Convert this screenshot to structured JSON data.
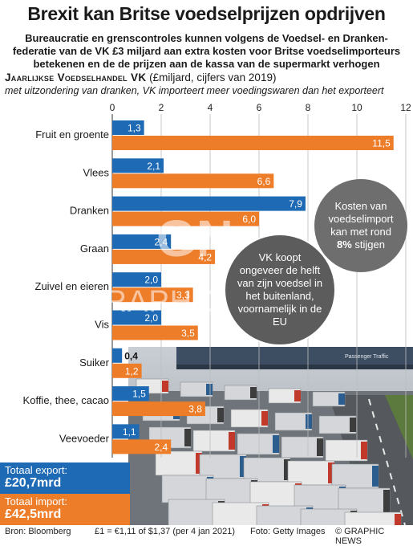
{
  "title": "Brexit kan Britse voedselprijzen opdrijven",
  "subtitle": "Bureaucratie en grenscontroles kunnen volgens de Voedsel- en Dranken-federatie van de VK £3 miljard aan extra kosten voor Britse voedselimporteurs betekenen en de de prijzen aan de kassa van de supermarkt verhogen",
  "chart_head": {
    "bold": "Jaarlijkse Voedselhandel VK",
    "rest": " (£miljard, cijfers van 2019)"
  },
  "chart_note": "met uitzondering van dranken, VK importeert meer voedingswaren dan het exporteert",
  "chart_data": {
    "type": "bar",
    "orientation": "horizontal",
    "categories": [
      "Fruit en groente",
      "Vlees",
      "Dranken",
      "Graan",
      "Zuivel en eieren",
      "Vis",
      "Suiker",
      "Koffie, thee, cacao",
      "Veevoeder"
    ],
    "series": [
      {
        "key": "export",
        "values": [
          1.3,
          2.1,
          7.9,
          2.4,
          2.0,
          2.0,
          0.4,
          1.5,
          1.1
        ],
        "labels": [
          "1,3",
          "2,1",
          "7,9",
          "2,4",
          "2,0",
          "2,0",
          "0,4",
          "1,5",
          "1,1"
        ],
        "color": "#1e6ab5"
      },
      {
        "key": "import",
        "values": [
          11.5,
          6.6,
          6.0,
          4.2,
          3.3,
          3.5,
          1.2,
          3.8,
          2.4
        ],
        "labels": [
          "11,5",
          "6,6",
          "6,0",
          "4,2",
          "3,3",
          "3,5",
          "1,2",
          "3,8",
          "2,4"
        ],
        "color": "#ee7d2a"
      }
    ],
    "xlim": [
      0,
      12
    ],
    "xticks": [
      0,
      2,
      4,
      6,
      8,
      10,
      12
    ],
    "xtick_labels": [
      "0",
      "2",
      "4",
      "6",
      "8",
      "10",
      "12"
    ],
    "grid": true
  },
  "bubble_cost": {
    "line1": "Kosten van",
    "line2": "voedselimport",
    "line3": "kan met rond",
    "highlight": "8%",
    "line4": " stijgen"
  },
  "bubble_import": {
    "text": "VK koopt ongeveer de helft van zijn voedsel in het buitenland, voornamelijk in de EU"
  },
  "totals": {
    "export_label": "Totaal export:",
    "export_value": "£20,7mrd",
    "import_label": "Totaal import:",
    "import_value": "£42,5mrd"
  },
  "photo_sign": "Passenger Traffic",
  "watermark": "GRAPHIC NEWS",
  "footer": {
    "source": "Bron: Bloomberg",
    "rate": "£1 = €1,11 of $1,37 (per 4 jan 2021)",
    "photo": "Foto: Getty Images",
    "credit": "© GRAPHIC NEWS"
  },
  "colors": {
    "export": "#1e6ab5",
    "import": "#ee7d2a",
    "bubble": "#6e6e6e"
  }
}
